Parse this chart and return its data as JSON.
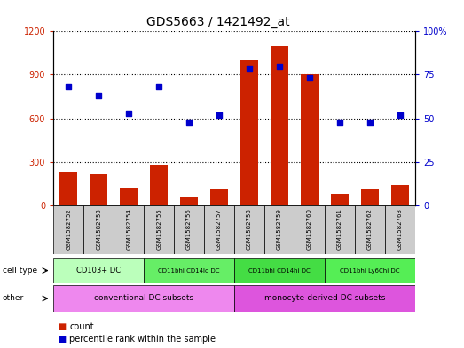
{
  "title": "GDS5663 / 1421492_at",
  "samples": [
    "GSM1582752",
    "GSM1582753",
    "GSM1582754",
    "GSM1582755",
    "GSM1582756",
    "GSM1582757",
    "GSM1582758",
    "GSM1582759",
    "GSM1582760",
    "GSM1582761",
    "GSM1582762",
    "GSM1582763"
  ],
  "counts": [
    230,
    220,
    120,
    280,
    60,
    110,
    1000,
    1100,
    900,
    80,
    110,
    140
  ],
  "percentiles": [
    68,
    63,
    53,
    68,
    48,
    52,
    79,
    80,
    73,
    48,
    48,
    52
  ],
  "bar_color": "#cc2200",
  "dot_color": "#0000cc",
  "ylim_left": [
    0,
    1200
  ],
  "ylim_right": [
    0,
    100
  ],
  "yticks_left": [
    0,
    300,
    600,
    900,
    1200
  ],
  "ytick_labels_left": [
    "0",
    "300",
    "600",
    "900",
    "1200"
  ],
  "yticks_right": [
    0,
    25,
    50,
    75,
    100
  ],
  "ytick_labels_right": [
    "0",
    "25",
    "50",
    "75",
    "100%"
  ],
  "cell_type_groups": [
    {
      "label": "CD103+ DC",
      "start": 0,
      "end": 2,
      "color": "#bbffbb"
    },
    {
      "label": "CD11bhi CD14lo DC",
      "start": 3,
      "end": 5,
      "color": "#66ee66"
    },
    {
      "label": "CD11bhi CD14hi DC",
      "start": 6,
      "end": 8,
      "color": "#44dd44"
    },
    {
      "label": "CD11bhi Ly6Chi DC",
      "start": 9,
      "end": 11,
      "color": "#55ee55"
    }
  ],
  "other_groups": [
    {
      "label": "conventional DC subsets",
      "start": 0,
      "end": 5,
      "color": "#ee88ee"
    },
    {
      "label": "monocyte-derived DC subsets",
      "start": 6,
      "end": 11,
      "color": "#dd55dd"
    }
  ],
  "cell_type_row_label": "cell type",
  "other_row_label": "other",
  "legend_count_label": "count",
  "legend_percentile_label": "percentile rank within the sample",
  "background_color": "#ffffff",
  "plot_bg_color": "#ffffff",
  "tick_label_color_left": "#cc2200",
  "tick_label_color_right": "#0000cc",
  "sample_box_color": "#cccccc"
}
